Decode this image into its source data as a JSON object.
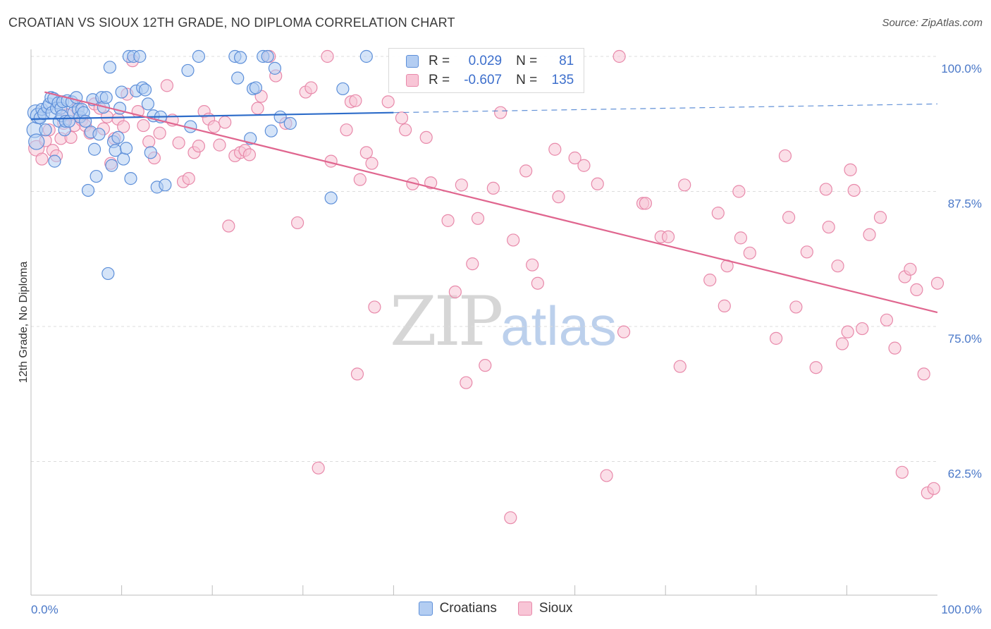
{
  "title": "CROATIAN VS SIOUX 12TH GRADE, NO DIPLOMA CORRELATION CHART",
  "source": "Source: ZipAtlas.com",
  "watermark": {
    "zip": "ZIP",
    "atlas": "atlas"
  },
  "legend": {
    "rows": [
      {
        "r_label": "R =",
        "r_value": "0.029",
        "n_label": "N =",
        "n_value": "81"
      },
      {
        "r_label": "R =",
        "r_value": "-0.607",
        "n_label": "N =",
        "n_value": "135"
      }
    ]
  },
  "bottom_legend": [
    "Croatians",
    "Sioux"
  ],
  "colors": {
    "croatians_fill": "#b3cdf2",
    "croatians_stroke": "#5d8fd9",
    "croatians_line": "#2d6cc9",
    "sioux_fill": "#f8c5d6",
    "sioux_stroke": "#e889aa",
    "sioux_line": "#e0668f",
    "tick_text": "#4a78c8",
    "grid": "#dcdcdc"
  },
  "chart_data": {
    "type": "scatter",
    "ylabel": "12th Grade, No Diploma",
    "xlim": [
      0,
      100
    ],
    "ylim": [
      52.5,
      101.5
    ],
    "x_tick_labels": [
      {
        "value": 0,
        "label": "0.0%"
      },
      {
        "value": 100,
        "label": "100.0%"
      }
    ],
    "y_tick_labels": [
      {
        "value": 100,
        "label": "100.0%"
      },
      {
        "value": 87.5,
        "label": "87.5%"
      },
      {
        "value": 75,
        "label": "75.0%"
      },
      {
        "value": 62.5,
        "label": "62.5%"
      }
    ],
    "series": [
      {
        "name": "Croatians",
        "trend": {
          "x": [
            0,
            40
          ],
          "y": [
            94.2,
            94.8
          ],
          "dashed_to_x": 100,
          "dashed_end_y": 95.6
        },
        "points": [
          [
            0.4,
            93.2
          ],
          [
            0.5,
            94.8
          ],
          [
            0.6,
            92.1
          ],
          [
            0.8,
            94.5
          ],
          [
            1.0,
            94.3
          ],
          [
            1.2,
            95.1
          ],
          [
            1.4,
            94.7
          ],
          [
            1.6,
            93.2
          ],
          [
            1.8,
            95.3
          ],
          [
            2.0,
            95.6
          ],
          [
            2.2,
            96.2
          ],
          [
            2.3,
            94.8
          ],
          [
            2.5,
            96.1
          ],
          [
            2.6,
            90.3
          ],
          [
            2.8,
            95.2
          ],
          [
            3.0,
            95.7
          ],
          [
            3.1,
            94.0
          ],
          [
            3.3,
            95.2
          ],
          [
            3.4,
            94.5
          ],
          [
            3.5,
            95.8
          ],
          [
            3.7,
            93.2
          ],
          [
            3.8,
            94.0
          ],
          [
            4.0,
            95.9
          ],
          [
            4.2,
            94.0
          ],
          [
            4.5,
            95.8
          ],
          [
            4.7,
            94.8
          ],
          [
            5.0,
            96.2
          ],
          [
            5.2,
            95.1
          ],
          [
            5.4,
            94.4
          ],
          [
            5.6,
            95.1
          ],
          [
            5.8,
            94.8
          ],
          [
            6.0,
            94.0
          ],
          [
            6.3,
            87.6
          ],
          [
            6.6,
            93.0
          ],
          [
            6.8,
            96.0
          ],
          [
            7.0,
            91.4
          ],
          [
            7.2,
            88.9
          ],
          [
            7.5,
            92.8
          ],
          [
            7.8,
            96.2
          ],
          [
            8.0,
            95.3
          ],
          [
            8.3,
            96.2
          ],
          [
            8.5,
            79.9
          ],
          [
            8.7,
            99.0
          ],
          [
            8.9,
            89.9
          ],
          [
            9.1,
            92.1
          ],
          [
            9.3,
            91.3
          ],
          [
            9.6,
            92.5
          ],
          [
            9.8,
            95.2
          ],
          [
            10.0,
            96.7
          ],
          [
            10.2,
            90.5
          ],
          [
            10.5,
            91.5
          ],
          [
            10.8,
            100.0
          ],
          [
            11.0,
            88.7
          ],
          [
            11.3,
            100.0
          ],
          [
            11.6,
            96.8
          ],
          [
            12.0,
            100.0
          ],
          [
            12.3,
            97.1
          ],
          [
            12.6,
            96.9
          ],
          [
            12.9,
            95.6
          ],
          [
            13.2,
            91.1
          ],
          [
            13.5,
            94.5
          ],
          [
            13.9,
            87.9
          ],
          [
            14.3,
            94.4
          ],
          [
            14.8,
            88.1
          ],
          [
            17.3,
            98.7
          ],
          [
            17.6,
            93.5
          ],
          [
            18.5,
            100.0
          ],
          [
            22.5,
            100.0
          ],
          [
            22.8,
            98.0
          ],
          [
            23.1,
            99.9
          ],
          [
            24.2,
            92.4
          ],
          [
            24.5,
            97.0
          ],
          [
            24.8,
            97.1
          ],
          [
            25.6,
            100.0
          ],
          [
            26.1,
            100.0
          ],
          [
            26.5,
            93.1
          ],
          [
            26.9,
            98.9
          ],
          [
            27.5,
            94.4
          ],
          [
            28.6,
            93.8
          ],
          [
            33.1,
            86.9
          ],
          [
            34.4,
            97.0
          ],
          [
            37.0,
            100.0
          ]
        ]
      },
      {
        "name": "Sioux",
        "trend": {
          "x": [
            1.5,
            100
          ],
          "y": [
            96.7,
            76.3
          ]
        },
        "points": [
          [
            0.6,
            91.5
          ],
          [
            1.2,
            90.5
          ],
          [
            1.6,
            92.2
          ],
          [
            2.0,
            93.2
          ],
          [
            2.4,
            91.3
          ],
          [
            2.8,
            90.8
          ],
          [
            3.3,
            92.4
          ],
          [
            3.6,
            93.8
          ],
          [
            4.0,
            94.6
          ],
          [
            4.4,
            92.5
          ],
          [
            4.8,
            93.6
          ],
          [
            5.2,
            95.3
          ],
          [
            5.6,
            94.1
          ],
          [
            6.0,
            93.6
          ],
          [
            6.5,
            92.9
          ],
          [
            7.0,
            95.6
          ],
          [
            7.6,
            95.2
          ],
          [
            8.0,
            93.3
          ],
          [
            8.4,
            94.4
          ],
          [
            8.8,
            90.1
          ],
          [
            9.2,
            92.4
          ],
          [
            9.6,
            94.2
          ],
          [
            10.2,
            93.5
          ],
          [
            10.6,
            96.5
          ],
          [
            11.2,
            99.6
          ],
          [
            11.8,
            94.9
          ],
          [
            12.4,
            93.6
          ],
          [
            13.0,
            92.1
          ],
          [
            13.6,
            90.6
          ],
          [
            14.2,
            92.9
          ],
          [
            15.0,
            97.3
          ],
          [
            15.6,
            94.1
          ],
          [
            16.3,
            92.0
          ],
          [
            16.8,
            88.4
          ],
          [
            17.4,
            88.7
          ],
          [
            18.0,
            91.1
          ],
          [
            18.5,
            91.7
          ],
          [
            19.1,
            94.9
          ],
          [
            19.6,
            94.2
          ],
          [
            20.2,
            93.5
          ],
          [
            20.8,
            91.8
          ],
          [
            21.4,
            93.9
          ],
          [
            21.8,
            84.3
          ],
          [
            22.5,
            90.8
          ],
          [
            23.1,
            91.1
          ],
          [
            23.6,
            91.3
          ],
          [
            24.1,
            90.9
          ],
          [
            25.0,
            95.2
          ],
          [
            25.4,
            96.3
          ],
          [
            26.3,
            100.0
          ],
          [
            27.0,
            98.2
          ],
          [
            28.1,
            93.8
          ],
          [
            29.4,
            84.6
          ],
          [
            30.3,
            96.7
          ],
          [
            30.9,
            97.1
          ],
          [
            31.7,
            61.9
          ],
          [
            32.7,
            100.0
          ],
          [
            33.1,
            90.3
          ],
          [
            34.8,
            93.2
          ],
          [
            35.3,
            95.8
          ],
          [
            35.8,
            95.9
          ],
          [
            36.0,
            70.6
          ],
          [
            36.3,
            88.6
          ],
          [
            37.0,
            91.1
          ],
          [
            37.6,
            90.1
          ],
          [
            37.9,
            76.8
          ],
          [
            39.4,
            95.8
          ],
          [
            40.9,
            94.3
          ],
          [
            41.3,
            93.2
          ],
          [
            42.1,
            88.2
          ],
          [
            43.6,
            92.5
          ],
          [
            44.1,
            88.3
          ],
          [
            46.0,
            84.8
          ],
          [
            46.8,
            78.2
          ],
          [
            47.5,
            88.1
          ],
          [
            48.0,
            69.8
          ],
          [
            48.7,
            80.8
          ],
          [
            49.3,
            85.0
          ],
          [
            50.1,
            71.4
          ],
          [
            51.0,
            87.8
          ],
          [
            51.8,
            94.8
          ],
          [
            52.9,
            57.3
          ],
          [
            53.2,
            83.0
          ],
          [
            54.6,
            89.4
          ],
          [
            55.3,
            80.7
          ],
          [
            55.9,
            79.0
          ],
          [
            57.8,
            91.4
          ],
          [
            58.2,
            87.0
          ],
          [
            60.0,
            90.6
          ],
          [
            61.0,
            89.9
          ],
          [
            62.5,
            88.2
          ],
          [
            63.5,
            61.2
          ],
          [
            64.9,
            100.0
          ],
          [
            65.4,
            74.5
          ],
          [
            67.5,
            86.4
          ],
          [
            67.8,
            86.4
          ],
          [
            69.5,
            83.3
          ],
          [
            70.3,
            83.3
          ],
          [
            71.6,
            71.3
          ],
          [
            72.1,
            88.1
          ],
          [
            74.9,
            79.3
          ],
          [
            75.8,
            85.5
          ],
          [
            76.5,
            76.9
          ],
          [
            76.8,
            80.6
          ],
          [
            78.1,
            87.5
          ],
          [
            78.3,
            83.2
          ],
          [
            79.3,
            81.8
          ],
          [
            82.2,
            73.9
          ],
          [
            83.2,
            90.8
          ],
          [
            83.6,
            85.1
          ],
          [
            84.4,
            76.8
          ],
          [
            85.6,
            81.9
          ],
          [
            86.6,
            71.2
          ],
          [
            87.7,
            87.7
          ],
          [
            88.0,
            84.2
          ],
          [
            89.0,
            80.6
          ],
          [
            89.5,
            73.4
          ],
          [
            90.1,
            74.5
          ],
          [
            90.4,
            89.5
          ],
          [
            90.8,
            87.6
          ],
          [
            91.7,
            74.8
          ],
          [
            92.5,
            83.5
          ],
          [
            93.7,
            85.1
          ],
          [
            94.4,
            75.6
          ],
          [
            95.3,
            73.0
          ],
          [
            96.1,
            61.5
          ],
          [
            96.4,
            79.6
          ],
          [
            97.0,
            80.3
          ],
          [
            97.7,
            78.4
          ],
          [
            98.5,
            70.6
          ],
          [
            98.9,
            59.6
          ],
          [
            99.6,
            60.0
          ],
          [
            100.0,
            79.0
          ]
        ]
      }
    ]
  }
}
